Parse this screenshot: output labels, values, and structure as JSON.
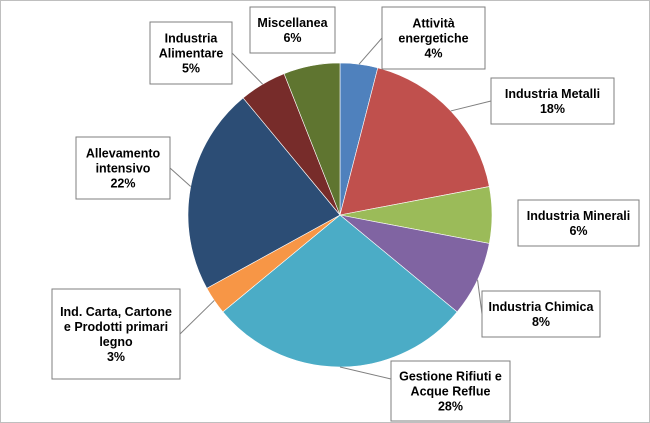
{
  "chart_data": {
    "type": "pie",
    "title": "",
    "slices": [
      {
        "lines": [
          "Attività",
          "energetiche"
        ],
        "pct_label": "4%",
        "value": 4,
        "color": "#4F81BD"
      },
      {
        "lines": [
          "Industria Metalli"
        ],
        "pct_label": "18%",
        "value": 18,
        "color": "#C0504D"
      },
      {
        "lines": [
          "Industria Minerali"
        ],
        "pct_label": "6%",
        "value": 6,
        "color": "#9BBB59"
      },
      {
        "lines": [
          "Industria Chimica"
        ],
        "pct_label": "8%",
        "value": 8,
        "color": "#8064A2"
      },
      {
        "lines": [
          "Gestione Rifiuti e",
          "Acque Reflue"
        ],
        "pct_label": "28%",
        "value": 28,
        "color": "#4BACC6"
      },
      {
        "lines": [
          "Ind. Carta, Cartone",
          "e Prodotti primari",
          "legno"
        ],
        "pct_label": "3%",
        "value": 3,
        "color": "#F79646"
      },
      {
        "lines": [
          "Allevamento",
          "intensivo"
        ],
        "pct_label": "22%",
        "value": 22,
        "color": "#2C4D75"
      },
      {
        "lines": [
          "Industria",
          "Alimentare"
        ],
        "pct_label": "5%",
        "value": 5,
        "color": "#772C2A"
      },
      {
        "lines": [
          "Miscellanea"
        ],
        "pct_label": "6%",
        "value": 6,
        "color": "#5F7530"
      }
    ]
  }
}
